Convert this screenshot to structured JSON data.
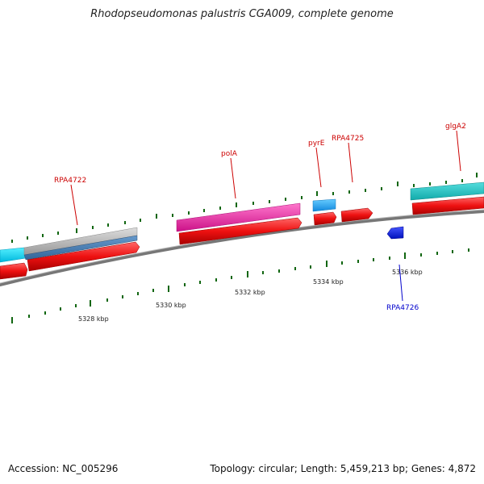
{
  "title": "Rhodopseudomonas palustris CGA009, complete genome",
  "footer": {
    "accession": "Accession: NC_005296",
    "stats": "Topology: circular; Length: 5,459,213 bp; Genes: 4,872"
  },
  "colors": {
    "forward_gene": "#ee1111",
    "reverse_gene": "#1133dd",
    "label_forward": "#cc0000",
    "label_reverse": "#0000cc",
    "tick": "#116611",
    "backbone": "#777777"
  },
  "scale": {
    "tick_labels": [
      "5328 kbp",
      "5330 kbp",
      "5332 kbp",
      "5334 kbp",
      "5336 kbp"
    ]
  },
  "genes": {
    "labels": [
      "RPA4722",
      "polA",
      "pyrE",
      "RPA4725",
      "glgA2",
      "RPA4726"
    ]
  }
}
